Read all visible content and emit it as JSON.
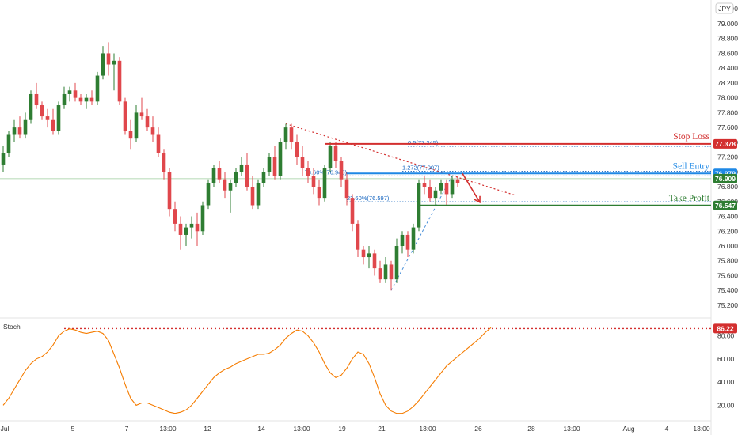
{
  "symbol_badge": "JPY",
  "colors": {
    "bull": "#2e7d32",
    "bear": "#e0474c",
    "stop": "#d32f2f",
    "entry": "#1e88e5",
    "profit": "#2e7d32",
    "stoch": "#f57c00",
    "trend": "#d32f2f",
    "fib": "#1565c0"
  },
  "chart_data": [
    {
      "type": "candlestick",
      "ylim": [
        75.05,
        79.32
      ],
      "y_ticks": [
        75.2,
        75.4,
        75.6,
        75.8,
        76.0,
        76.2,
        76.4,
        76.6,
        76.8,
        77.0,
        77.2,
        77.4,
        77.6,
        77.8,
        78.0,
        78.2,
        78.4,
        78.6,
        78.8,
        79.0,
        79.2
      ],
      "x_ticks": [
        "Jul",
        "5",
        "7",
        "13:00",
        "12",
        "14",
        "13:00",
        "19",
        "21",
        "13:00",
        "26",
        "28",
        "13:00",
        "Aug",
        "4",
        "13:00"
      ],
      "candles": [
        [
          77.1,
          77.35,
          77.0,
          77.25
        ],
        [
          77.25,
          77.55,
          77.2,
          77.5
        ],
        [
          77.5,
          77.7,
          77.4,
          77.6
        ],
        [
          77.6,
          77.75,
          77.45,
          77.5
        ],
        [
          77.5,
          77.8,
          77.45,
          77.7
        ],
        [
          77.7,
          78.1,
          77.65,
          78.05
        ],
        [
          78.05,
          78.2,
          77.85,
          77.9
        ],
        [
          77.9,
          77.95,
          77.7,
          77.75
        ],
        [
          77.75,
          77.85,
          77.6,
          77.7
        ],
        [
          77.7,
          77.85,
          77.5,
          77.55
        ],
        [
          77.55,
          77.95,
          77.5,
          77.9
        ],
        [
          77.9,
          78.15,
          77.85,
          78.05
        ],
        [
          78.05,
          78.15,
          77.95,
          78.1
        ],
        [
          78.1,
          78.2,
          77.95,
          78.0
        ],
        [
          78.0,
          78.05,
          77.9,
          77.95
        ],
        [
          77.95,
          78.05,
          77.85,
          78.0
        ],
        [
          78.0,
          78.1,
          77.9,
          77.95
        ],
        [
          77.95,
          78.35,
          77.9,
          78.3
        ],
        [
          78.3,
          78.7,
          78.25,
          78.6
        ],
        [
          78.6,
          78.75,
          78.3,
          78.45
        ],
        [
          78.45,
          78.6,
          78.1,
          78.5
        ],
        [
          78.5,
          78.55,
          77.9,
          77.95
        ],
        [
          77.95,
          78.0,
          77.5,
          77.55
        ],
        [
          77.55,
          77.7,
          77.3,
          77.45
        ],
        [
          77.45,
          77.9,
          77.4,
          77.8
        ],
        [
          77.8,
          78.0,
          77.7,
          77.75
        ],
        [
          77.75,
          77.85,
          77.55,
          77.6
        ],
        [
          77.6,
          77.75,
          77.4,
          77.5
        ],
        [
          77.5,
          77.6,
          77.2,
          77.25
        ],
        [
          77.25,
          77.3,
          76.9,
          77.0
        ],
        [
          77.0,
          77.05,
          76.4,
          76.5
        ],
        [
          76.5,
          76.6,
          76.2,
          76.3
        ],
        [
          76.3,
          76.4,
          75.95,
          76.15
        ],
        [
          76.15,
          76.3,
          76.0,
          76.25
        ],
        [
          76.25,
          76.4,
          76.1,
          76.3
        ],
        [
          76.3,
          76.45,
          76.0,
          76.2
        ],
        [
          76.2,
          76.6,
          76.15,
          76.55
        ],
        [
          76.55,
          76.9,
          76.5,
          76.85
        ],
        [
          76.85,
          77.1,
          76.8,
          77.05
        ],
        [
          77.05,
          77.15,
          76.85,
          76.9
        ],
        [
          76.9,
          77.0,
          76.65,
          76.75
        ],
        [
          76.75,
          76.9,
          76.45,
          76.85
        ],
        [
          76.85,
          77.05,
          76.8,
          77.0
        ],
        [
          77.0,
          77.2,
          76.95,
          77.1
        ],
        [
          77.1,
          77.25,
          76.75,
          76.8
        ],
        [
          76.8,
          76.95,
          76.5,
          76.55
        ],
        [
          76.55,
          76.9,
          76.5,
          76.85
        ],
        [
          76.85,
          77.05,
          76.8,
          77.0
        ],
        [
          77.0,
          77.25,
          76.95,
          77.2
        ],
        [
          77.2,
          77.35,
          76.9,
          76.95
        ],
        [
          76.95,
          77.45,
          76.9,
          77.4
        ],
        [
          77.4,
          77.65,
          77.3,
          77.6
        ],
        [
          77.6,
          77.65,
          77.3,
          77.4
        ],
        [
          77.4,
          77.5,
          77.1,
          77.2
        ],
        [
          77.2,
          77.35,
          76.95,
          77.05
        ],
        [
          77.05,
          77.15,
          76.85,
          76.95
        ],
        [
          76.95,
          77.05,
          76.7,
          76.8
        ],
        [
          76.8,
          76.9,
          76.55,
          76.65
        ],
        [
          76.65,
          77.1,
          76.6,
          77.05
        ],
        [
          77.05,
          77.4,
          77.0,
          77.35
        ],
        [
          77.35,
          77.4,
          77.05,
          77.15
        ],
        [
          77.15,
          77.2,
          76.8,
          76.9
        ],
        [
          76.9,
          77.0,
          76.55,
          76.65
        ],
        [
          76.65,
          76.7,
          76.2,
          76.3
        ],
        [
          76.3,
          76.35,
          75.85,
          75.95
        ],
        [
          75.95,
          76.0,
          75.75,
          75.85
        ],
        [
          75.85,
          76.0,
          75.7,
          75.9
        ],
        [
          75.9,
          75.95,
          75.6,
          75.7
        ],
        [
          75.7,
          75.8,
          75.5,
          75.55
        ],
        [
          75.55,
          75.85,
          75.5,
          75.75
        ],
        [
          75.75,
          75.8,
          75.4,
          75.55
        ],
        [
          75.55,
          76.1,
          75.5,
          76.0
        ],
        [
          76.0,
          76.2,
          75.9,
          76.15
        ],
        [
          76.15,
          76.2,
          75.85,
          75.95
        ],
        [
          75.95,
          76.3,
          75.9,
          76.25
        ],
        [
          76.25,
          76.9,
          76.2,
          76.85
        ],
        [
          76.85,
          76.95,
          76.7,
          76.8
        ],
        [
          76.8,
          76.9,
          76.6,
          76.65
        ],
        [
          76.65,
          76.8,
          76.55,
          76.75
        ],
        [
          76.75,
          76.9,
          76.7,
          76.85
        ],
        [
          76.85,
          76.9,
          76.55,
          76.7
        ],
        [
          76.7,
          76.95,
          76.65,
          76.9
        ],
        [
          76.9,
          76.95,
          76.8,
          76.85
        ]
      ],
      "levels": [
        {
          "name": "Stop Loss",
          "price": 77.378,
          "price_text": "77.378"
        },
        {
          "name": "Sell Entry",
          "price": 76.979,
          "price_text": "76.979"
        },
        {
          "name": "Take Profit",
          "price": 76.547,
          "price_text": "76.547"
        }
      ],
      "current_price": 76.909,
      "current_price_text": "76.909",
      "fib_labels": [
        "0.5(77.345)",
        "1.272(77.007)",
        "78.60%(76.946)",
        "23.60%(76.597)"
      ]
    },
    {
      "type": "line",
      "title": "Stoch",
      "ylim": [
        8,
        94
      ],
      "y_ticks": [
        20.0,
        40.0,
        60.0,
        80.0
      ],
      "level_value": 86.22,
      "level_text": "86.22",
      "values": [
        20,
        26,
        34,
        42,
        50,
        56,
        60,
        62,
        66,
        72,
        80,
        84,
        86,
        85,
        83,
        82,
        83,
        84,
        82,
        76,
        64,
        52,
        38,
        26,
        20,
        22,
        22,
        20,
        18,
        16,
        14,
        13,
        14,
        16,
        20,
        26,
        32,
        38,
        44,
        48,
        51,
        53,
        56,
        58,
        60,
        62,
        64,
        64,
        65,
        68,
        72,
        78,
        82,
        85,
        84,
        80,
        74,
        66,
        56,
        48,
        44,
        46,
        52,
        60,
        66,
        64,
        56,
        44,
        30,
        20,
        15,
        13,
        13,
        15,
        19,
        24,
        30,
        36,
        42,
        48,
        54,
        58,
        62,
        66,
        70,
        74,
        78,
        83,
        87
      ]
    }
  ]
}
